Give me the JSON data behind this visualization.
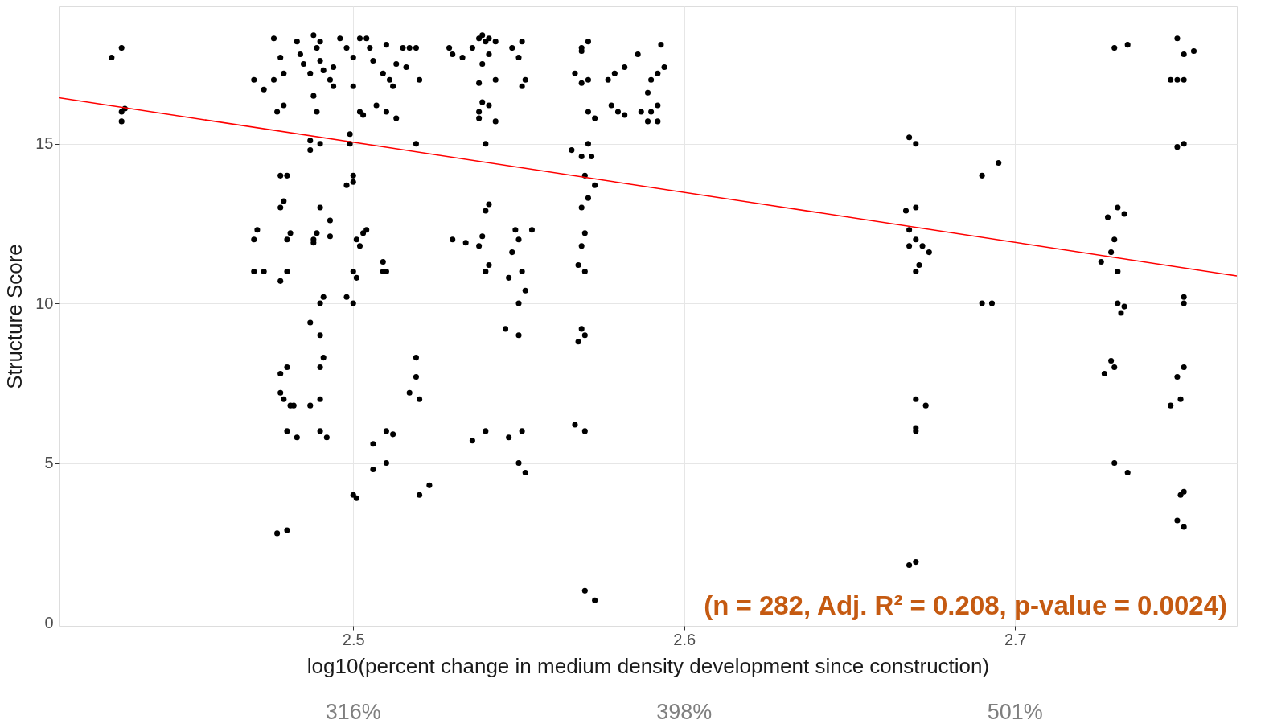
{
  "chart_data": {
    "type": "scatter",
    "xlabel": "log10(percent change in medium density development since construction)",
    "ylabel": "Structure Score",
    "xlim": [
      2.411,
      2.767
    ],
    "ylim": [
      -0.1,
      19.3
    ],
    "xticks": [
      2.5,
      2.6,
      2.7
    ],
    "yticks": [
      0,
      5,
      10,
      15
    ],
    "grid": true,
    "marker": "circle",
    "annotations": [
      "316%",
      "398%",
      "501%",
      "(n = 282, Adj. R² = 0.208, p-value = 0.0024)"
    ],
    "series": [
      {
        "color": "#000000",
        "x": [
          2.427,
          2.43,
          2.431,
          2.43,
          2.43,
          2.47,
          2.471,
          2.47,
          2.473,
          2.47,
          2.473,
          2.476,
          2.476,
          2.478,
          2.479,
          2.477,
          2.479,
          2.478,
          2.479,
          2.478,
          2.48,
          2.481,
          2.48,
          2.478,
          2.48,
          2.478,
          2.48,
          2.478,
          2.479,
          2.481,
          2.482,
          2.48,
          2.483,
          2.477,
          2.48,
          2.483,
          2.484,
          2.485,
          2.487,
          2.488,
          2.489,
          2.49,
          2.491,
          2.493,
          2.494,
          2.488,
          2.489,
          2.487,
          2.487,
          2.49,
          2.488,
          2.489,
          2.49,
          2.493,
          2.493,
          2.488,
          2.487,
          2.49,
          2.49,
          2.491,
          2.49,
          2.491,
          2.487,
          2.49,
          2.49,
          2.492,
          2.49,
          2.494,
          2.496,
          2.498,
          2.5,
          2.502,
          2.504,
          2.499,
          2.499,
          2.5,
          2.5,
          2.498,
          2.5,
          2.501,
          2.502,
          2.503,
          2.504,
          2.5,
          2.501,
          2.5,
          2.498,
          2.5,
          2.501,
          2.502,
          2.503,
          2.505,
          2.506,
          2.506,
          2.507,
          2.509,
          2.51,
          2.509,
          2.509,
          2.51,
          2.51,
          2.512,
          2.51,
          2.506,
          2.511,
          2.512,
          2.513,
          2.513,
          2.515,
          2.516,
          2.517,
          2.519,
          2.519,
          2.52,
          2.517,
          2.519,
          2.519,
          2.52,
          2.52,
          2.523,
          2.51,
          2.529,
          2.53,
          2.533,
          2.536,
          2.538,
          2.539,
          2.54,
          2.541,
          2.543,
          2.539,
          2.541,
          2.543,
          2.538,
          2.539,
          2.541,
          2.538,
          2.543,
          2.54,
          2.538,
          2.541,
          2.54,
          2.53,
          2.534,
          2.538,
          2.539,
          2.541,
          2.54,
          2.548,
          2.55,
          2.551,
          2.551,
          2.552,
          2.549,
          2.55,
          2.554,
          2.548,
          2.551,
          2.552,
          2.55,
          2.547,
          2.546,
          2.55,
          2.54,
          2.536,
          2.547,
          2.551,
          2.55,
          2.552,
          2.567,
          2.569,
          2.569,
          2.571,
          2.571,
          2.569,
          2.571,
          2.573,
          2.566,
          2.569,
          2.571,
          2.572,
          2.57,
          2.573,
          2.571,
          2.569,
          2.57,
          2.569,
          2.568,
          2.57,
          2.569,
          2.57,
          2.568,
          2.567,
          2.57,
          2.57,
          2.573,
          2.577,
          2.579,
          2.582,
          2.578,
          2.58,
          2.582,
          2.586,
          2.589,
          2.59,
          2.592,
          2.593,
          2.594,
          2.587,
          2.589,
          2.59,
          2.592,
          2.592,
          2.668,
          2.67,
          2.667,
          2.67,
          2.668,
          2.67,
          2.668,
          2.672,
          2.674,
          2.67,
          2.671,
          2.67,
          2.673,
          2.67,
          2.67,
          2.67,
          2.668,
          2.69,
          2.695,
          2.69,
          2.693,
          2.73,
          2.734,
          2.728,
          2.731,
          2.733,
          2.73,
          2.729,
          2.726,
          2.731,
          2.731,
          2.732,
          2.733,
          2.729,
          2.73,
          2.727,
          2.73,
          2.734,
          2.749,
          2.751,
          2.754,
          2.747,
          2.749,
          2.751,
          2.749,
          2.751,
          2.751,
          2.751,
          2.751,
          2.749,
          2.75,
          2.747,
          2.751,
          2.75,
          2.749,
          2.751
        ],
        "values": [
          17.7,
          18.0,
          16.1,
          15.7,
          16.0,
          12.0,
          12.3,
          11.0,
          11.0,
          17.0,
          16.7,
          17.0,
          18.3,
          17.7,
          17.2,
          16.0,
          16.2,
          13.0,
          13.2,
          14.0,
          14.0,
          12.2,
          12.0,
          10.7,
          11.0,
          7.8,
          8.0,
          7.2,
          7.0,
          6.8,
          6.8,
          6.0,
          5.8,
          2.8,
          2.9,
          18.2,
          17.8,
          17.5,
          17.2,
          18.4,
          18.0,
          17.6,
          17.3,
          17.0,
          17.4,
          16.5,
          16.0,
          15.1,
          14.8,
          15.0,
          12.0,
          12.2,
          13.0,
          12.6,
          12.1,
          11.9,
          9.4,
          9.0,
          10.0,
          10.2,
          8.0,
          8.3,
          6.8,
          7.0,
          6.0,
          5.8,
          18.2,
          16.8,
          18.3,
          18.0,
          17.7,
          18.3,
          18.3,
          15.3,
          15.0,
          16.8,
          13.8,
          13.7,
          14.0,
          12.0,
          11.8,
          12.2,
          12.3,
          11.0,
          10.8,
          10.0,
          10.2,
          4.0,
          3.9,
          16.0,
          15.9,
          18.0,
          17.6,
          5.6,
          16.2,
          17.2,
          18.1,
          11.3,
          11.0,
          11.0,
          6.0,
          5.9,
          5.0,
          4.8,
          17.0,
          16.8,
          15.8,
          17.5,
          18.0,
          17.4,
          18.0,
          18.0,
          15.0,
          17.0,
          7.2,
          8.3,
          7.7,
          7.0,
          4.0,
          4.3,
          16.0,
          18.0,
          17.8,
          17.7,
          18.0,
          18.3,
          18.4,
          18.2,
          18.3,
          18.2,
          17.5,
          17.8,
          17.0,
          16.9,
          16.3,
          16.2,
          15.8,
          15.7,
          15.0,
          16.0,
          13.1,
          12.9,
          12.0,
          11.9,
          11.8,
          12.1,
          11.2,
          11.0,
          18.0,
          17.7,
          18.2,
          16.8,
          17.0,
          12.3,
          12.0,
          12.3,
          11.6,
          11.0,
          10.4,
          10.0,
          10.8,
          9.2,
          9.0,
          6.0,
          5.7,
          5.8,
          6.0,
          5.0,
          4.7,
          17.2,
          18.0,
          17.9,
          18.2,
          17.0,
          16.9,
          16.0,
          15.8,
          14.8,
          14.6,
          15.0,
          14.6,
          14.0,
          13.7,
          13.3,
          13.0,
          12.2,
          11.8,
          11.2,
          11.0,
          9.2,
          9.0,
          8.8,
          6.2,
          6.0,
          1.0,
          0.7,
          17.0,
          17.2,
          17.4,
          16.2,
          16.0,
          15.9,
          17.8,
          16.6,
          17.0,
          17.2,
          18.1,
          17.4,
          16.0,
          15.7,
          16.0,
          16.2,
          15.7,
          15.2,
          15.0,
          12.9,
          13.0,
          12.3,
          12.0,
          11.8,
          11.8,
          11.6,
          11.0,
          11.2,
          7.0,
          6.8,
          6.1,
          6.0,
          1.9,
          1.8,
          14.0,
          14.4,
          10.0,
          10.0,
          18.0,
          18.1,
          12.7,
          13.0,
          12.8,
          12.0,
          11.6,
          11.3,
          11.0,
          10.0,
          9.7,
          9.9,
          8.2,
          8.0,
          7.8,
          5.0,
          4.7,
          18.3,
          17.8,
          17.9,
          17.0,
          17.0,
          17.0,
          14.9,
          15.0,
          10.2,
          10.0,
          8.0,
          7.7,
          7.0,
          6.8,
          4.1,
          4.0,
          3.2,
          3.0
        ]
      },
      {
        "type": "line",
        "marker": "none",
        "color": "#ff0000",
        "x": [
          2.411,
          2.767
        ],
        "values": [
          16.44,
          10.86
        ]
      }
    ]
  }
}
